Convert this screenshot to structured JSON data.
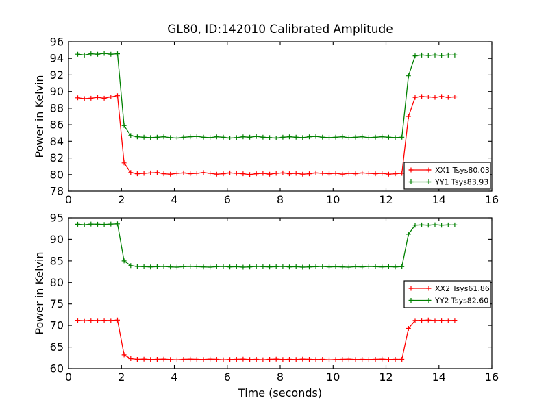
{
  "figure": {
    "background": "#ffffff",
    "title": "GL80, ID:142010 Calibrated Amplitude"
  },
  "chart_data": [
    {
      "type": "line",
      "title": "GL80, ID:142010 Calibrated Amplitude",
      "xlabel": "",
      "ylabel": "Power in Kelvin",
      "xlim": [
        0,
        16
      ],
      "ylim": [
        78,
        96
      ],
      "xticks": [
        0,
        2,
        4,
        6,
        8,
        10,
        12,
        14,
        16
      ],
      "yticks": [
        78,
        80,
        82,
        84,
        86,
        88,
        90,
        92,
        94,
        96
      ],
      "grid": false,
      "legend_position": "lower right",
      "x": [
        0.35,
        0.6,
        0.85,
        1.1,
        1.35,
        1.6,
        1.85,
        2.1,
        2.35,
        2.6,
        2.85,
        3.1,
        3.35,
        3.6,
        3.85,
        4.1,
        4.35,
        4.6,
        4.85,
        5.1,
        5.35,
        5.6,
        5.85,
        6.1,
        6.35,
        6.6,
        6.85,
        7.1,
        7.35,
        7.6,
        7.85,
        8.1,
        8.35,
        8.6,
        8.85,
        9.1,
        9.35,
        9.6,
        9.85,
        10.1,
        10.35,
        10.6,
        10.85,
        11.1,
        11.35,
        11.6,
        11.85,
        12.1,
        12.35,
        12.6,
        12.85,
        13.1,
        13.35,
        13.6,
        13.85,
        14.1,
        14.35,
        14.6
      ],
      "series": [
        {
          "name": "XX1 Tsys80.03",
          "color": "#ff0000",
          "marker": "+",
          "values": [
            89.25,
            89.15,
            89.2,
            89.3,
            89.2,
            89.35,
            89.5,
            81.4,
            80.25,
            80.1,
            80.15,
            80.2,
            80.25,
            80.1,
            80.05,
            80.15,
            80.2,
            80.1,
            80.15,
            80.25,
            80.15,
            80.05,
            80.1,
            80.2,
            80.15,
            80.1,
            80.0,
            80.1,
            80.15,
            80.05,
            80.15,
            80.2,
            80.1,
            80.15,
            80.05,
            80.1,
            80.2,
            80.15,
            80.1,
            80.15,
            80.05,
            80.15,
            80.1,
            80.2,
            80.15,
            80.1,
            80.15,
            80.05,
            80.1,
            80.15,
            87.0,
            89.3,
            89.4,
            89.35,
            89.3,
            89.4,
            89.3,
            89.35
          ]
        },
        {
          "name": "YY1 Tsys83.93",
          "color": "#008000",
          "marker": "+",
          "values": [
            94.5,
            94.4,
            94.55,
            94.5,
            94.6,
            94.5,
            94.55,
            85.9,
            84.7,
            84.55,
            84.5,
            84.45,
            84.5,
            84.55,
            84.45,
            84.4,
            84.5,
            84.55,
            84.6,
            84.5,
            84.45,
            84.55,
            84.5,
            84.4,
            84.45,
            84.55,
            84.5,
            84.6,
            84.5,
            84.45,
            84.4,
            84.5,
            84.55,
            84.5,
            84.45,
            84.55,
            84.6,
            84.5,
            84.45,
            84.5,
            84.55,
            84.45,
            84.5,
            84.55,
            84.45,
            84.5,
            84.55,
            84.5,
            84.45,
            84.5,
            91.9,
            94.3,
            94.4,
            94.35,
            94.4,
            94.35,
            94.4,
            94.4
          ]
        }
      ]
    },
    {
      "type": "line",
      "title": "",
      "xlabel": "Time (seconds)",
      "ylabel": "Power in Kelvin",
      "xlim": [
        0,
        16
      ],
      "ylim": [
        60,
        95
      ],
      "xticks": [
        0,
        2,
        4,
        6,
        8,
        10,
        12,
        14,
        16
      ],
      "yticks": [
        60,
        65,
        70,
        75,
        80,
        85,
        90,
        95
      ],
      "grid": false,
      "legend_position": "center right",
      "x": [
        0.35,
        0.6,
        0.85,
        1.1,
        1.35,
        1.6,
        1.85,
        2.1,
        2.35,
        2.6,
        2.85,
        3.1,
        3.35,
        3.6,
        3.85,
        4.1,
        4.35,
        4.6,
        4.85,
        5.1,
        5.35,
        5.6,
        5.85,
        6.1,
        6.35,
        6.6,
        6.85,
        7.1,
        7.35,
        7.6,
        7.85,
        8.1,
        8.35,
        8.6,
        8.85,
        9.1,
        9.35,
        9.6,
        9.85,
        10.1,
        10.35,
        10.6,
        10.85,
        11.1,
        11.35,
        11.6,
        11.85,
        12.1,
        12.35,
        12.6,
        12.85,
        13.1,
        13.35,
        13.6,
        13.85,
        14.1,
        14.35,
        14.6
      ],
      "series": [
        {
          "name": "XX2 Tsys61.86",
          "color": "#ff0000",
          "marker": "+",
          "values": [
            71.2,
            71.1,
            71.2,
            71.15,
            71.2,
            71.15,
            71.25,
            63.2,
            62.3,
            62.15,
            62.2,
            62.1,
            62.15,
            62.2,
            62.1,
            62.05,
            62.15,
            62.2,
            62.15,
            62.1,
            62.2,
            62.15,
            62.05,
            62.1,
            62.15,
            62.2,
            62.1,
            62.15,
            62.05,
            62.15,
            62.2,
            62.1,
            62.15,
            62.1,
            62.2,
            62.15,
            62.1,
            62.15,
            62.05,
            62.1,
            62.15,
            62.2,
            62.1,
            62.15,
            62.1,
            62.15,
            62.2,
            62.1,
            62.15,
            62.15,
            69.3,
            71.15,
            71.2,
            71.25,
            71.15,
            71.2,
            71.15,
            71.2
          ]
        },
        {
          "name": "YY2 Tsys82.60",
          "color": "#008000",
          "marker": "+",
          "values": [
            93.5,
            93.4,
            93.55,
            93.5,
            93.45,
            93.55,
            93.6,
            85.0,
            83.9,
            83.7,
            83.65,
            83.6,
            83.65,
            83.7,
            83.6,
            83.55,
            83.65,
            83.7,
            83.65,
            83.6,
            83.55,
            83.65,
            83.7,
            83.6,
            83.65,
            83.55,
            83.6,
            83.7,
            83.65,
            83.6,
            83.65,
            83.7,
            83.6,
            83.65,
            83.55,
            83.6,
            83.65,
            83.7,
            83.6,
            83.65,
            83.6,
            83.55,
            83.65,
            83.6,
            83.7,
            83.65,
            83.6,
            83.65,
            83.6,
            83.65,
            91.2,
            93.3,
            93.35,
            93.3,
            93.4,
            93.3,
            93.35,
            93.35
          ]
        }
      ]
    }
  ]
}
